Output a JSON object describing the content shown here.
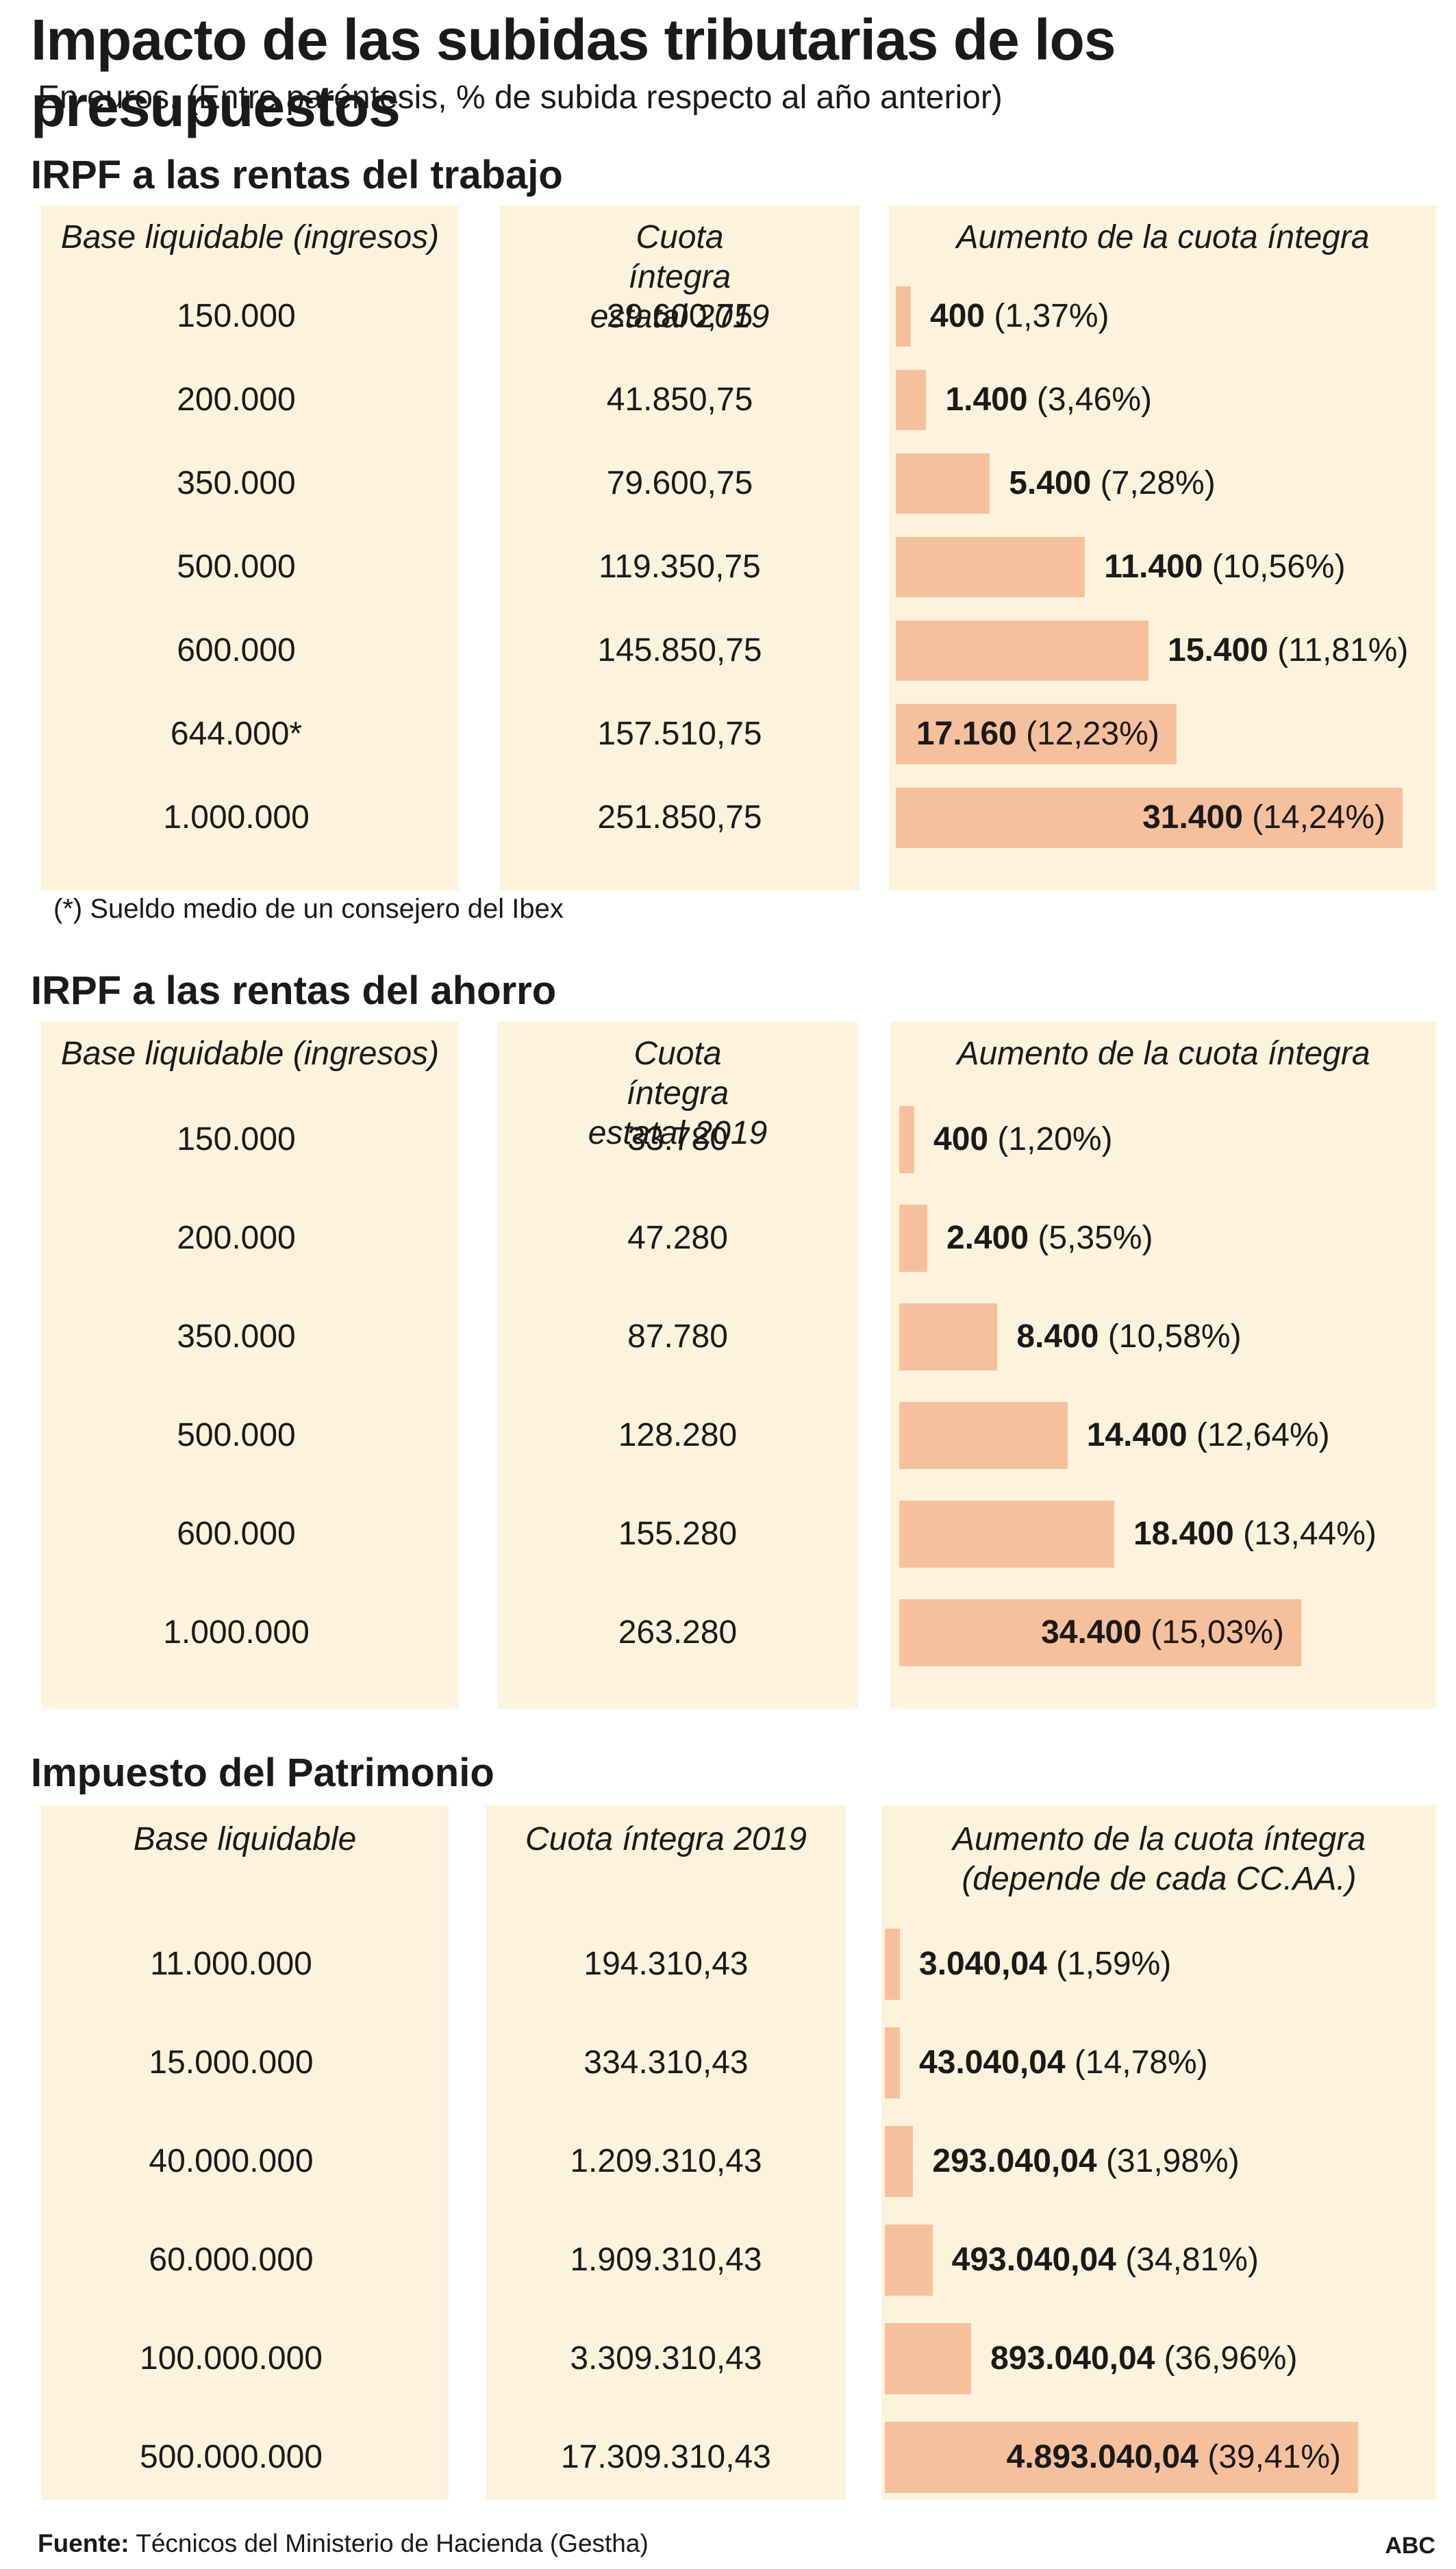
{
  "title": "Impacto de las subidas tributarias de los presupuestos",
  "subtitle": "En euros. (Entre paréntesis, % de subida respecto al año anterior)",
  "source_label": "Fuente:",
  "source_text": " Técnicos del Ministerio de Hacienda (Gestha)",
  "brand": "ABC",
  "note": "(*) Sueldo medio de un consejero del Ibex",
  "chart_data": [
    {
      "type": "bar",
      "title": "IRPF a las rentas del trabajo",
      "columns": [
        "Base liquidable (ingresos)",
        "Cuota íntegra estatal 2019",
        "Aumento de la cuota íntegra"
      ],
      "categories": [
        "150.000",
        "200.000",
        "350.000",
        "500.000",
        "600.000",
        "644.000*",
        "1.000.000"
      ],
      "cuota": [
        "29.600,75",
        "41.850,75",
        "79.600,75",
        "119.350,75",
        "145.850,75",
        "157.510,75",
        "251.850,75"
      ],
      "values": [
        400,
        1400,
        5400,
        11400,
        15400,
        17160,
        31400
      ],
      "value_labels": [
        "400",
        "1.400",
        "5.400",
        "11.400",
        "15.400",
        "17.160",
        "31.400"
      ],
      "pct_labels": [
        "(1,37%)",
        "(3,46%)",
        "(7,28%)",
        "(10,56%)",
        "(11,81%)",
        "(12,23%)",
        "(14,24%)"
      ]
    },
    {
      "type": "bar",
      "title": "IRPF a las rentas del ahorro",
      "columns": [
        "Base liquidable (ingresos)",
        "Cuota íntegra estatal 2019",
        "Aumento de la cuota íntegra"
      ],
      "categories": [
        "150.000",
        "200.000",
        "350.000",
        "500.000",
        "600.000",
        "1.000.000"
      ],
      "cuota": [
        "33.780",
        "47.280",
        "87.780",
        "128.280",
        "155.280",
        "263.280"
      ],
      "values": [
        400,
        2400,
        8400,
        14400,
        18400,
        34400
      ],
      "value_labels": [
        "400",
        "2.400",
        "8.400",
        "14.400",
        "18.400",
        "34.400"
      ],
      "pct_labels": [
        "(1,20%)",
        "(5,35%)",
        "(10,58%)",
        "(12,64%)",
        "(13,44%)",
        "(15,03%)"
      ]
    },
    {
      "type": "bar",
      "title": "Impuesto del Patrimonio",
      "columns": [
        "Base liquidable",
        "Cuota íntegra 2019",
        "Aumento de la cuota íntegra (depende de cada CC.AA.)"
      ],
      "categories": [
        "11.000.000",
        "15.000.000",
        "40.000.000",
        "60.000.000",
        "100.000.000",
        "500.000.000"
      ],
      "cuota": [
        "194.310,43",
        "334.310,43",
        "1.209.310,43",
        "1.909.310,43",
        "3.309.310,43",
        "17.309.310,43"
      ],
      "values": [
        3040.04,
        43040.04,
        293040.04,
        493040.04,
        893040.04,
        4893040.04
      ],
      "value_labels": [
        "3.040,04",
        "43.040,04",
        "293.040,04",
        "493.040,04",
        "893.040,04",
        "4.893.040,04"
      ],
      "pct_labels": [
        "(1,59%)",
        "(14,78%)",
        "(31,98%)",
        "(34,81%)",
        "(36,96%)",
        "(39,41%)"
      ]
    }
  ],
  "colors": {
    "panel": "#fdf2dc",
    "bar": "#f7c09c"
  }
}
